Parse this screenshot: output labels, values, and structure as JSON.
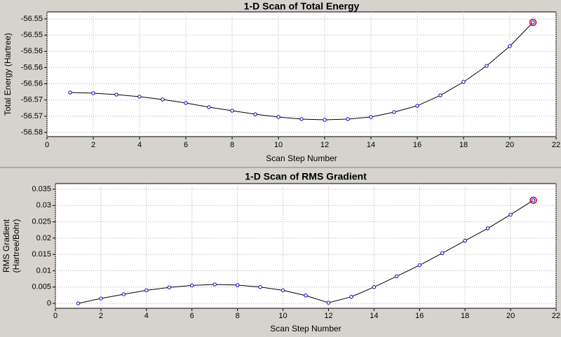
{
  "chart_data": [
    {
      "type": "line",
      "title": "1-D Scan of Total Energy",
      "xlabel": "Scan Step Number",
      "ylabel": [
        "Total Energy (Hartree)"
      ],
      "x": [
        1,
        2,
        3,
        4,
        5,
        6,
        7,
        8,
        9,
        10,
        11,
        12,
        13,
        14,
        15,
        16,
        17,
        18,
        19,
        20,
        21
      ],
      "series": [
        {
          "color": "#000000",
          "marker_color": "#0000cc",
          "values": [
            -56.56679,
            -56.56693,
            -56.56722,
            -56.56765,
            -56.56823,
            -56.56895,
            -56.56981,
            -56.57053,
            -56.57126,
            -56.57183,
            -56.57226,
            -56.57241,
            -56.57226,
            -56.57183,
            -56.57082,
            -56.56953,
            -56.56737,
            -56.56463,
            -56.56132,
            -56.55728,
            -56.55239
          ]
        }
      ],
      "highlight_color": "#cc0033",
      "xlim": [
        0,
        22
      ],
      "xticks": [
        0,
        2,
        4,
        6,
        8,
        10,
        12,
        14,
        16,
        18,
        20,
        22
      ],
      "ylim": [
        -56.57586,
        -56.55023
      ],
      "yticks": [
        {
          "value": -56.575,
          "label": "-56.58"
        },
        {
          "value": -56.571667,
          "label": "-56.57"
        },
        {
          "value": -56.568333,
          "label": "-56.57"
        },
        {
          "value": -56.565,
          "label": "-56.56"
        },
        {
          "value": -56.561667,
          "label": "-56.56"
        },
        {
          "value": -56.558333,
          "label": "-56.56"
        },
        {
          "value": -56.555,
          "label": "-56.55"
        },
        {
          "value": -56.551667,
          "label": "-56.55"
        }
      ],
      "grid": true
    },
    {
      "type": "line",
      "title": "1-D Scan of RMS Gradient",
      "xlabel": "Scan Step Number",
      "ylabel": [
        "RMS Gradient",
        "(Hartree/Bohr)"
      ],
      "x": [
        1,
        2,
        3,
        4,
        5,
        6,
        7,
        8,
        9,
        10,
        11,
        12,
        13,
        14,
        15,
        16,
        17,
        18,
        19,
        20,
        21
      ],
      "series": [
        {
          "color": "#000000",
          "marker_color": "#0000cc",
          "values": [
            0,
            0.0015,
            0.0028,
            0.004,
            0.0049,
            0.0055,
            0.0058,
            0.0056,
            0.005,
            0.004,
            0.0024,
            0.0002,
            0.002,
            0.005,
            0.0083,
            0.0117,
            0.0154,
            0.0192,
            0.023,
            0.0272,
            0.0316
          ]
        }
      ],
      "highlight_color": "#cc0033",
      "xlim": [
        0,
        22
      ],
      "xticks": [
        0,
        2,
        4,
        6,
        8,
        10,
        12,
        14,
        16,
        18,
        20,
        22
      ],
      "ylim": [
        -0.0015,
        0.03672
      ],
      "yticks": [
        0,
        0.005,
        0.01,
        0.015,
        0.02,
        0.025,
        0.03,
        0.035
      ],
      "grid": true
    }
  ]
}
